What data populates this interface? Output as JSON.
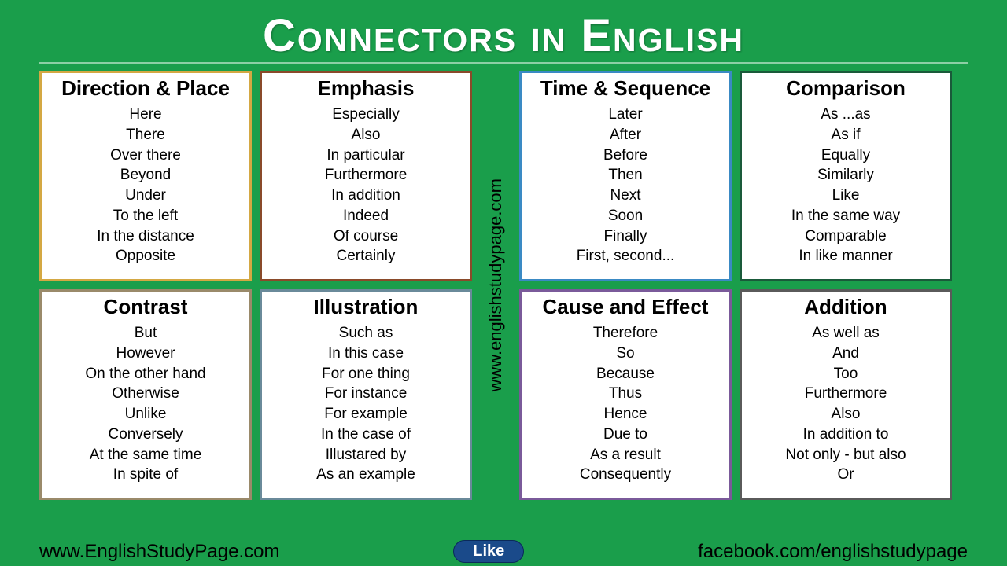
{
  "title": "Connectors in English",
  "background_color": "#1a9e4b",
  "title_color": "#ffffff",
  "vertical_text": "www.englishstudypage.com",
  "footer": {
    "left": "www.EnglishStudyPage.com",
    "button": "Like",
    "right": "facebook.com/englishstudypage"
  },
  "cards": [
    {
      "title": "Direction & Place",
      "border_color": "#d4a843",
      "items": [
        "Here",
        "There",
        "Over there",
        "Beyond",
        "Under",
        "To the left",
        "In the distance",
        "Opposite"
      ]
    },
    {
      "title": "Emphasis",
      "border_color": "#8a4a2a",
      "items": [
        "Especially",
        "Also",
        "In particular",
        "Furthermore",
        "In addition",
        "Indeed",
        "Of course",
        "Certainly"
      ]
    },
    {
      "title": "Time & Sequence",
      "border_color": "#3a8ac4",
      "items": [
        "Later",
        "After",
        "Before",
        "Then",
        "Next",
        "Soon",
        "Finally",
        "First, second..."
      ]
    },
    {
      "title": "Comparison",
      "border_color": "#1a5a3a",
      "items": [
        "As ...as",
        "As if",
        "Equally",
        "Similarly",
        "Like",
        "In the same way",
        "Comparable",
        "In like manner"
      ]
    },
    {
      "title": "Contrast",
      "border_color": "#9a8a6a",
      "items": [
        "But",
        "However",
        "On the other hand",
        "Otherwise",
        "Unlike",
        "Conversely",
        "At the same time",
        "In spite of"
      ]
    },
    {
      "title": "Illustration",
      "border_color": "#6a8a9a",
      "items": [
        "Such as",
        "In this case",
        "For one thing",
        "For instance",
        "For example",
        "In the case of",
        "Illustared by",
        "As an example"
      ]
    },
    {
      "title": "Cause and Effect",
      "border_color": "#7a5a9a",
      "items": [
        "Therefore",
        "So",
        "Because",
        "Thus",
        "Hence",
        "Due to",
        "As a result",
        "Consequently"
      ]
    },
    {
      "title": "Addition",
      "border_color": "#5a5a5a",
      "items": [
        "As well as",
        "And",
        "Too",
        "Furthermore",
        "Also",
        "In addition to",
        "Not only - but also",
        "Or"
      ]
    }
  ]
}
